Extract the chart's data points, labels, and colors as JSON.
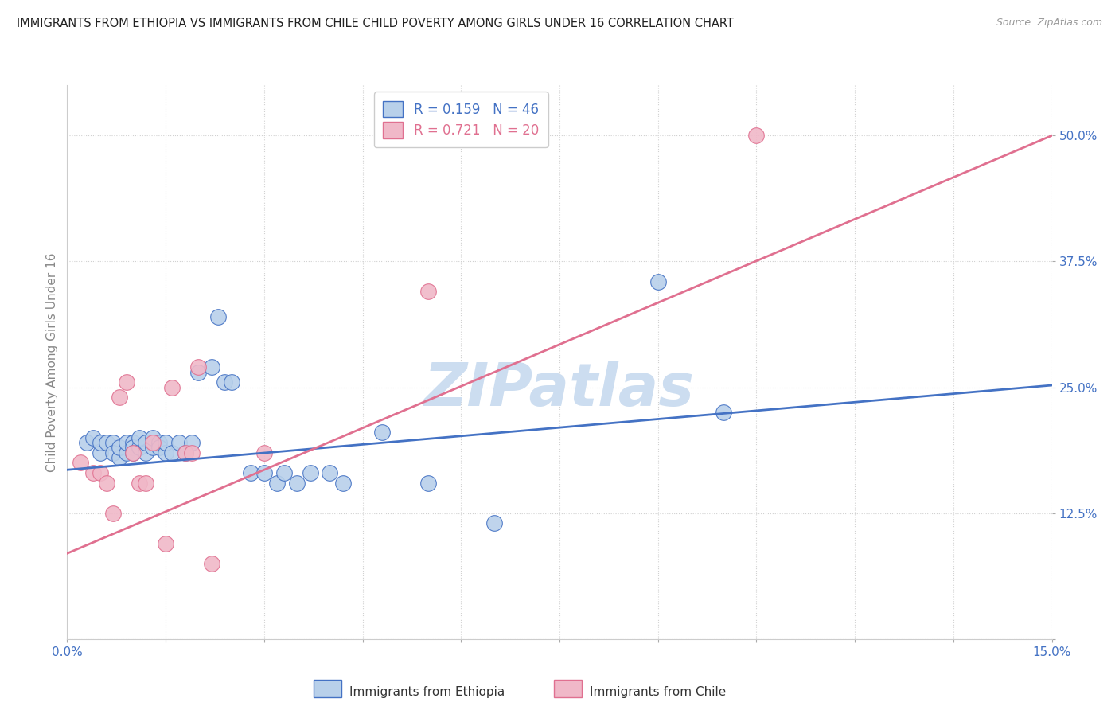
{
  "title": "IMMIGRANTS FROM ETHIOPIA VS IMMIGRANTS FROM CHILE CHILD POVERTY AMONG GIRLS UNDER 16 CORRELATION CHART",
  "source": "Source: ZipAtlas.com",
  "ylabel": "Child Poverty Among Girls Under 16",
  "xlim": [
    0.0,
    0.15
  ],
  "ylim": [
    0.0,
    0.55
  ],
  "yticks": [
    0.0,
    0.125,
    0.25,
    0.375,
    0.5
  ],
  "ytick_labels": [
    "",
    "12.5%",
    "25.0%",
    "37.5%",
    "50.0%"
  ],
  "xticks": [
    0.0,
    0.015,
    0.03,
    0.045,
    0.06,
    0.075,
    0.09,
    0.105,
    0.12,
    0.135,
    0.15
  ],
  "legend_ethiopia": "R = 0.159   N = 46",
  "legend_chile": "R = 0.721   N = 20",
  "legend_ethiopia_bottom": "Immigrants from Ethiopia",
  "legend_chile_bottom": "Immigrants from Chile",
  "color_ethiopia": "#b8d0ea",
  "color_chile": "#f0b8c8",
  "line_color_ethiopia": "#4472c4",
  "line_color_chile": "#e07090",
  "tick_color": "#4472c4",
  "ylabel_color": "#888888",
  "background_color": "#ffffff",
  "watermark": "ZIPatlas",
  "watermark_color": "#ccddf0",
  "ethiopia_x": [
    0.003,
    0.004,
    0.005,
    0.005,
    0.006,
    0.007,
    0.007,
    0.008,
    0.008,
    0.009,
    0.009,
    0.01,
    0.01,
    0.01,
    0.011,
    0.011,
    0.012,
    0.012,
    0.013,
    0.013,
    0.014,
    0.014,
    0.015,
    0.015,
    0.016,
    0.017,
    0.018,
    0.019,
    0.02,
    0.022,
    0.023,
    0.024,
    0.025,
    0.028,
    0.03,
    0.032,
    0.033,
    0.035,
    0.037,
    0.04,
    0.042,
    0.048,
    0.055,
    0.065,
    0.09,
    0.1
  ],
  "ethiopia_y": [
    0.195,
    0.2,
    0.185,
    0.195,
    0.195,
    0.195,
    0.185,
    0.18,
    0.19,
    0.185,
    0.195,
    0.195,
    0.19,
    0.185,
    0.19,
    0.2,
    0.185,
    0.195,
    0.19,
    0.2,
    0.195,
    0.19,
    0.185,
    0.195,
    0.185,
    0.195,
    0.185,
    0.195,
    0.265,
    0.27,
    0.32,
    0.255,
    0.255,
    0.165,
    0.165,
    0.155,
    0.165,
    0.155,
    0.165,
    0.165,
    0.155,
    0.205,
    0.155,
    0.115,
    0.355,
    0.225
  ],
  "chile_x": [
    0.002,
    0.004,
    0.005,
    0.006,
    0.007,
    0.008,
    0.009,
    0.01,
    0.011,
    0.012,
    0.013,
    0.015,
    0.016,
    0.018,
    0.019,
    0.02,
    0.022,
    0.03,
    0.055,
    0.105
  ],
  "chile_y": [
    0.175,
    0.165,
    0.165,
    0.155,
    0.125,
    0.24,
    0.255,
    0.185,
    0.155,
    0.155,
    0.195,
    0.095,
    0.25,
    0.185,
    0.185,
    0.27,
    0.075,
    0.185,
    0.345,
    0.5
  ],
  "ethiopia_trend_x": [
    0.0,
    0.15
  ],
  "ethiopia_trend_y": [
    0.168,
    0.252
  ],
  "chile_trend_x": [
    0.0,
    0.15
  ],
  "chile_trend_y": [
    0.085,
    0.5
  ]
}
